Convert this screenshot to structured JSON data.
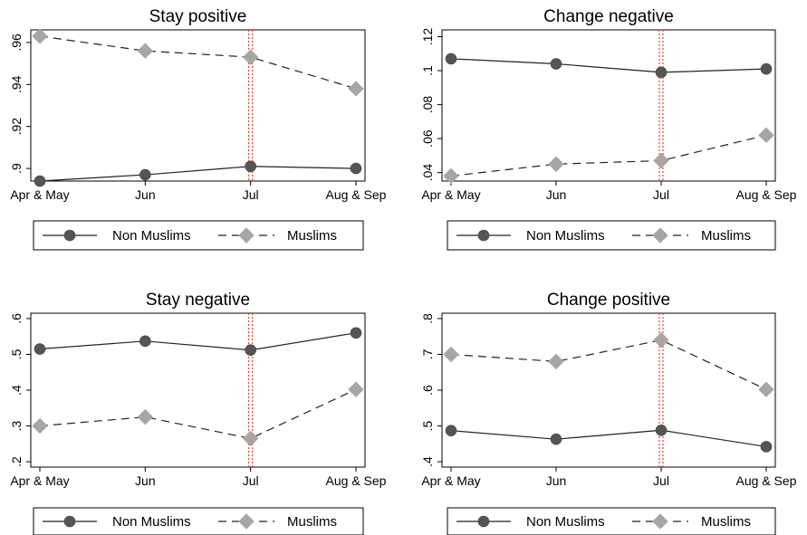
{
  "chart_data": [
    {
      "type": "line",
      "title": "Stay positive",
      "categories": [
        "Apr & May",
        "Jun",
        "Jul",
        "Aug & Sep"
      ],
      "ylim": [
        0.894,
        0.966
      ],
      "yticks": [
        ".9",
        ".92",
        ".94",
        ".96"
      ],
      "ytick_values": [
        0.9,
        0.92,
        0.94,
        0.96
      ],
      "marker_line_category": "Jul",
      "series": [
        {
          "name": "Non Muslims",
          "values": [
            0.894,
            0.897,
            0.901,
            0.9
          ]
        },
        {
          "name": "Muslims",
          "values": [
            0.963,
            0.956,
            0.953,
            0.938
          ]
        }
      ]
    },
    {
      "type": "line",
      "title": "Change negative",
      "categories": [
        "Apr & May",
        "Jun",
        "Jul",
        "Aug & Sep"
      ],
      "ylim": [
        0.035,
        0.124
      ],
      "yticks": [
        ".04",
        ".06",
        ".08",
        ".1",
        ".12"
      ],
      "ytick_values": [
        0.04,
        0.06,
        0.08,
        0.1,
        0.12
      ],
      "marker_line_category": "Jul",
      "series": [
        {
          "name": "Non Muslims",
          "values": [
            0.107,
            0.104,
            0.099,
            0.101
          ]
        },
        {
          "name": "Muslims",
          "values": [
            0.038,
            0.045,
            0.047,
            0.062
          ]
        }
      ]
    },
    {
      "type": "line",
      "title": "Stay negative",
      "categories": [
        "Apr & May",
        "Jun",
        "Jul",
        "Aug & Sep"
      ],
      "ylim": [
        0.185,
        0.615
      ],
      "yticks": [
        ".2",
        ".3",
        ".4",
        ".5",
        ".6"
      ],
      "ytick_values": [
        0.2,
        0.3,
        0.4,
        0.5,
        0.6
      ],
      "marker_line_category": "Jul",
      "series": [
        {
          "name": "Non Muslims",
          "values": [
            0.515,
            0.537,
            0.512,
            0.56
          ]
        },
        {
          "name": "Muslims",
          "values": [
            0.3,
            0.325,
            0.265,
            0.402
          ]
        }
      ]
    },
    {
      "type": "line",
      "title": "Change positive",
      "categories": [
        "Apr & May",
        "Jun",
        "Jul",
        "Aug & Sep"
      ],
      "ylim": [
        0.385,
        0.815
      ],
      "yticks": [
        ".4",
        ".5",
        ".6",
        ".7",
        ".8"
      ],
      "ytick_values": [
        0.4,
        0.5,
        0.6,
        0.7,
        0.8
      ],
      "marker_line_category": "Jul",
      "series": [
        {
          "name": "Non Muslims",
          "values": [
            0.487,
            0.463,
            0.488,
            0.442
          ]
        },
        {
          "name": "Muslims",
          "values": [
            0.7,
            0.68,
            0.74,
            0.602
          ]
        }
      ]
    }
  ],
  "colors": {
    "non_muslims": "#555555",
    "muslims": "#a9a5a3",
    "reference_line": "#e8432f",
    "axis": "#000000"
  }
}
